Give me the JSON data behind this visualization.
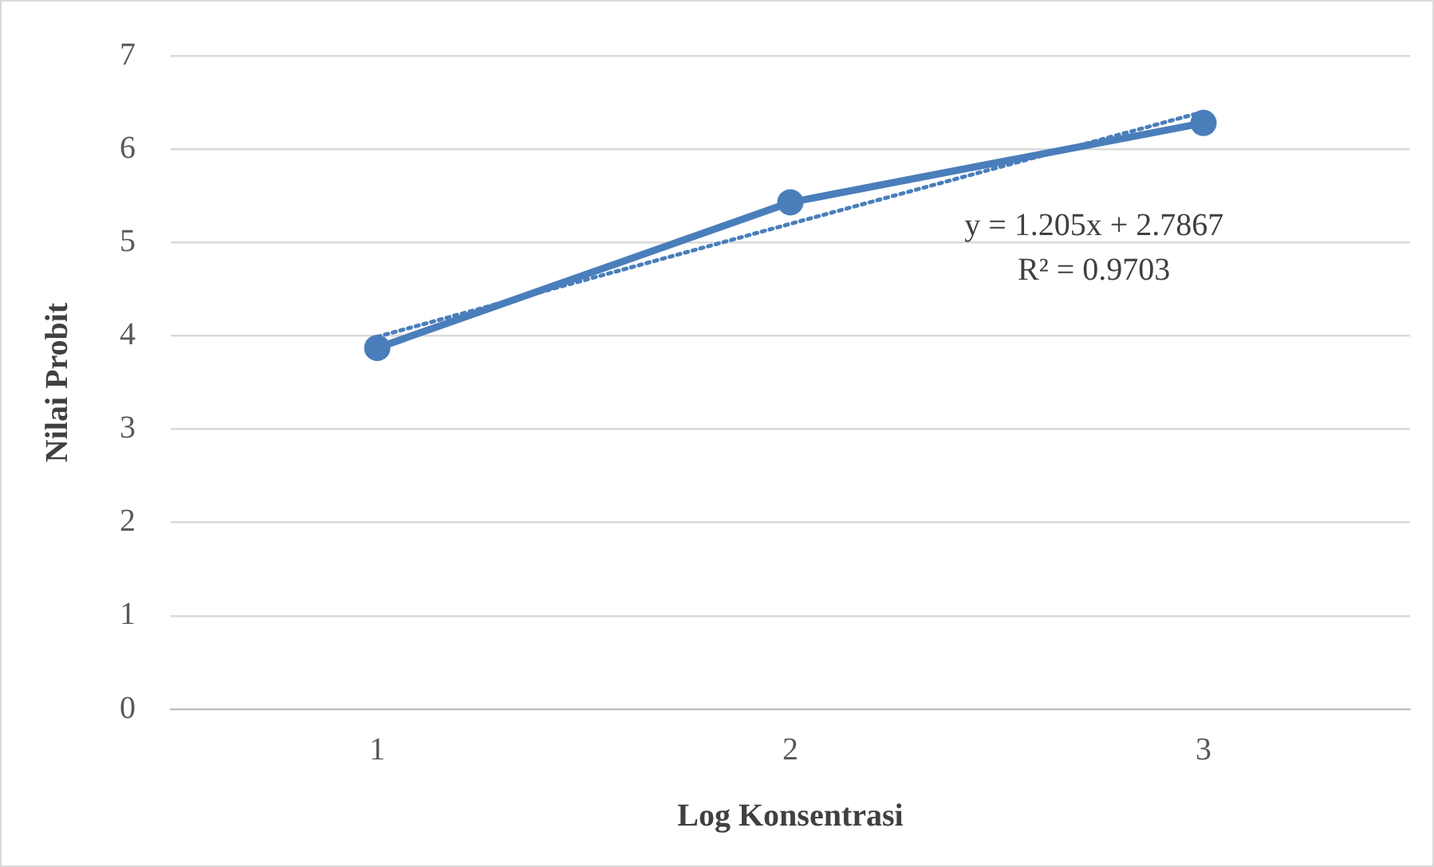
{
  "chart_data": {
    "type": "line",
    "xlabel": "Log Konsentrasi",
    "ylabel": "Nilai Probit",
    "categories": [
      "1",
      "2",
      "3"
    ],
    "series": [
      {
        "color": "#4a7ebb",
        "values": [
          3.87,
          5.43,
          6.28
        ],
        "marker": "circle",
        "line_style": "solid"
      },
      {
        "color": "#4a7ebb",
        "values": [
          3.99,
          5.2,
          6.4
        ],
        "marker": "none",
        "line_style": "dotted"
      }
    ],
    "ylim": [
      0,
      7
    ],
    "yticks": [
      0,
      1,
      2,
      3,
      4,
      5,
      6,
      7
    ],
    "grid": "y",
    "legend": false,
    "annotations": [
      "y = 1.205x + 2.7867",
      "R² = 0.9703"
    ]
  }
}
